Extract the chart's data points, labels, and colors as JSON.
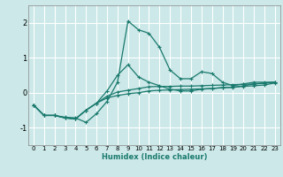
{
  "xlabel": "Humidex (Indice chaleur)",
  "background_color": "#cce8e8",
  "grid_color": "#ffffff",
  "line_color": "#1a7a6e",
  "xlim": [
    -0.5,
    23.5
  ],
  "ylim": [
    -1.5,
    2.5
  ],
  "yticks": [
    -1,
    0,
    1,
    2
  ],
  "xticks": [
    0,
    1,
    2,
    3,
    4,
    5,
    6,
    7,
    8,
    9,
    10,
    11,
    12,
    13,
    14,
    15,
    16,
    17,
    18,
    19,
    20,
    21,
    22,
    23
  ],
  "series1_x": [
    0,
    1,
    2,
    3,
    4,
    5,
    6,
    7,
    8,
    9,
    10,
    11,
    12,
    13,
    14,
    15,
    16,
    17,
    18,
    19,
    20,
    21,
    22,
    23
  ],
  "series1_y": [
    -0.35,
    -0.65,
    -0.65,
    -0.7,
    -0.72,
    -0.85,
    -0.6,
    -0.25,
    0.3,
    2.05,
    1.8,
    1.7,
    1.3,
    0.65,
    0.4,
    0.4,
    0.6,
    0.55,
    0.3,
    0.2,
    0.25,
    0.3,
    0.3,
    0.3
  ],
  "series2_x": [
    0,
    1,
    2,
    3,
    4,
    5,
    6,
    7,
    8,
    9,
    10,
    11,
    12,
    13,
    14,
    15,
    16,
    17,
    18,
    19,
    20,
    21,
    22,
    23
  ],
  "series2_y": [
    -0.35,
    -0.65,
    -0.65,
    -0.72,
    -0.75,
    -0.5,
    -0.3,
    0.05,
    0.5,
    0.8,
    0.45,
    0.3,
    0.2,
    0.1,
    0.05,
    0.05,
    0.1,
    0.12,
    0.15,
    0.15,
    0.2,
    0.25,
    0.28,
    0.3
  ],
  "series3_x": [
    0,
    1,
    2,
    3,
    4,
    5,
    6,
    7,
    8,
    9,
    10,
    11,
    12,
    13,
    14,
    15,
    16,
    17,
    18,
    19,
    20,
    21,
    22,
    23
  ],
  "series3_y": [
    -0.35,
    -0.65,
    -0.65,
    -0.72,
    -0.75,
    -0.5,
    -0.3,
    -0.1,
    0.02,
    0.07,
    0.12,
    0.17,
    0.18,
    0.18,
    0.19,
    0.19,
    0.2,
    0.21,
    0.22,
    0.23,
    0.24,
    0.25,
    0.27,
    0.3
  ],
  "series4_x": [
    0,
    1,
    2,
    3,
    4,
    5,
    6,
    7,
    8,
    9,
    10,
    11,
    12,
    13,
    14,
    15,
    16,
    17,
    18,
    19,
    20,
    21,
    22,
    23
  ],
  "series4_y": [
    -0.35,
    -0.65,
    -0.65,
    -0.72,
    -0.75,
    -0.5,
    -0.3,
    -0.15,
    -0.08,
    -0.03,
    0.0,
    0.05,
    0.07,
    0.08,
    0.09,
    0.1,
    0.11,
    0.12,
    0.14,
    0.16,
    0.18,
    0.2,
    0.22,
    0.28
  ],
  "spine_color": "#888888",
  "tick_fontsize": 5,
  "xlabel_fontsize": 6,
  "xlabel_fontweight": "bold"
}
